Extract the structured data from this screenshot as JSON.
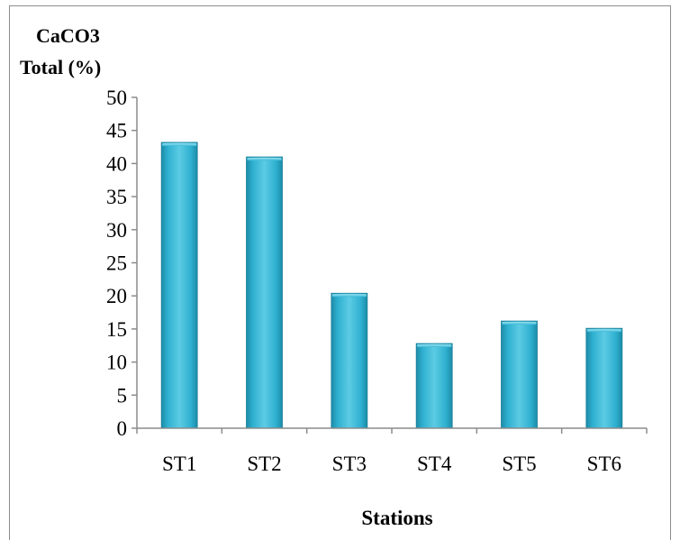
{
  "chart_data": {
    "type": "bar",
    "ylabel_line1": "CaCO3",
    "ylabel_line2": "Total (%)",
    "xlabel": "Stations",
    "categories": [
      "ST1",
      "ST2",
      "ST3",
      "ST4",
      "ST5",
      "ST6"
    ],
    "values": [
      43.2,
      41.0,
      20.4,
      12.8,
      16.2,
      15.1
    ],
    "ylim": [
      0,
      50
    ],
    "yticks": [
      "0",
      "5",
      "10",
      "15",
      "20",
      "25",
      "30",
      "35",
      "40",
      "45",
      "50"
    ],
    "grid": false,
    "colors": {
      "bar_top": "#7fd6ea",
      "bar_mid": "#2fb0d0",
      "bar_side": "#1c8ca8",
      "axis": "#8c8c8c"
    }
  }
}
